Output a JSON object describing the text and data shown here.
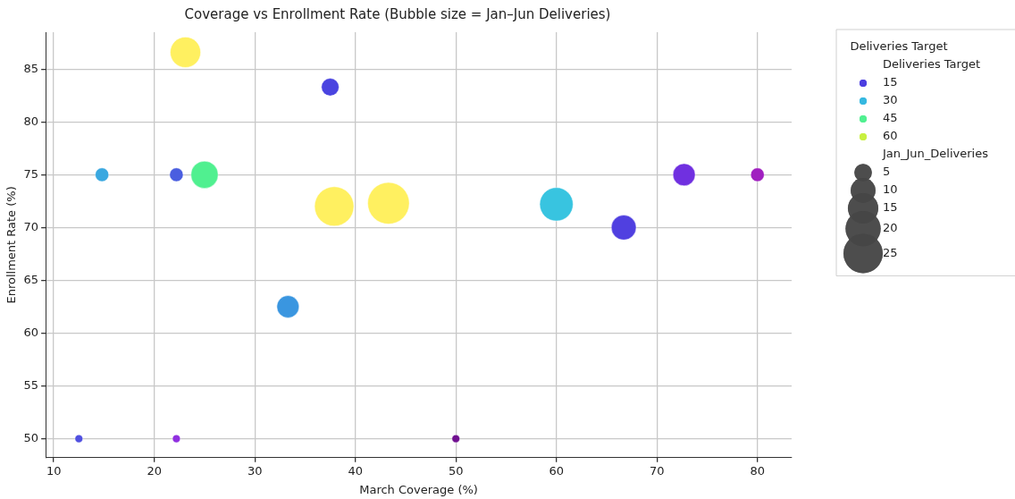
{
  "chart_data": {
    "type": "bubble",
    "title": "Coverage vs Enrollment Rate (Bubble size = Jan–Jun Deliveries)",
    "xlabel": "March Coverage (%)",
    "ylabel": "Enrollment Rate (%)",
    "series": [
      {
        "name": "15",
        "color": "#4b3ee0",
        "colors": [
          "#4a44e0",
          "#4a5ee0",
          "#5040e0",
          "#5050e0"
        ],
        "x": [
          37.5,
          22.2,
          66.7,
          12.5
        ],
        "values": [
          83.3,
          75,
          70,
          50
        ],
        "sizes": [
          5,
          3,
          10,
          1
        ]
      },
      {
        "name": "30",
        "color": "#35b8e0",
        "colors": [
          "#3aa8e0",
          "#38c4e0",
          "#3a96e0"
        ],
        "x": [
          14.8,
          60,
          33.3
        ],
        "values": [
          75,
          72.2,
          62.5
        ],
        "sizes": [
          3,
          18,
          8
        ]
      },
      {
        "name": "45",
        "color": "#50f090",
        "x": [
          25
        ],
        "values": [
          75
        ],
        "sizes": [
          12
        ]
      },
      {
        "name": "60",
        "color": "#c8f040"
      },
      {
        "color": "#fff060",
        "x": [
          23.1,
          37.9,
          43.3
        ],
        "values": [
          86.6,
          72,
          72.3
        ],
        "sizes": [
          15,
          25,
          28
        ]
      },
      {
        "colors": [
          "#7030e0",
          "#a020c0",
          "#9030e0",
          "#701090"
        ],
        "x": [
          72.7,
          80,
          22.2,
          50
        ],
        "values": [
          75,
          75,
          50,
          50
        ],
        "sizes": [
          8,
          3,
          1,
          1
        ]
      }
    ],
    "legend_title": "Deliveries Target",
    "size_legend": [
      5,
      10,
      15,
      20,
      25
    ],
    "annotations": [
      "Deliveries Target",
      "Jan_Jun_Deliveries"
    ],
    "xlim": [
      9.2,
      83.4
    ],
    "xticks": [
      10,
      20,
      30,
      40,
      50,
      60,
      70,
      80
    ],
    "ylim": [
      48.2,
      88.5
    ],
    "yticks": [
      50,
      55,
      60,
      65,
      70,
      75,
      80,
      85
    ],
    "grid": true,
    "legend": "right",
    "marker": "circle"
  }
}
